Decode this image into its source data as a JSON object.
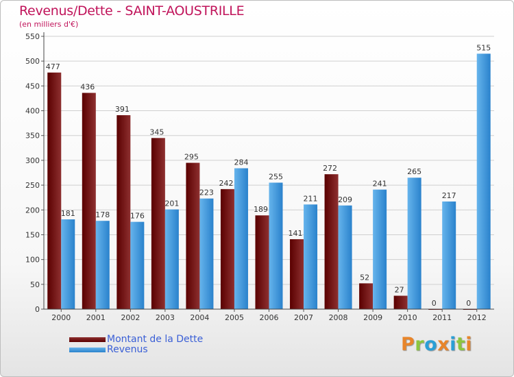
{
  "title": "Revenus/Dette - SAINT-AOUSTRILLE",
  "subtitle": "(en milliers d'€)",
  "colors": {
    "dette_dark": "#5a0000",
    "dette_light": "#8e3030",
    "revenus_dark": "#2a82cc",
    "revenus_light": "#66b4ec",
    "title": "#c0135a",
    "legend_text": "#3a5fd6"
  },
  "legend": [
    {
      "label": "Montant de la Dette"
    },
    {
      "label": "Revenus"
    }
  ],
  "logo": {
    "text": "Proxiti",
    "letters": [
      {
        "char": "P",
        "color": "#e8852a"
      },
      {
        "char": "r",
        "color": "#8cc63f"
      },
      {
        "char": "o",
        "color": "#2a9fd6"
      },
      {
        "char": "x",
        "color": "#e8852a"
      },
      {
        "char": "i",
        "color": "#2a9fd6"
      },
      {
        "char": "t",
        "color": "#8cc63f"
      },
      {
        "char": "i",
        "color": "#e8852a"
      }
    ]
  },
  "chart_data": {
    "type": "bar",
    "categories": [
      "2000",
      "2001",
      "2002",
      "2003",
      "2004",
      "2005",
      "2006",
      "2007",
      "2008",
      "2009",
      "2010",
      "2011",
      "2012"
    ],
    "series": [
      {
        "name": "Montant de la Dette",
        "values": [
          477,
          436,
          391,
          345,
          295,
          242,
          189,
          141,
          272,
          52,
          27,
          0,
          0
        ]
      },
      {
        "name": "Revenus",
        "values": [
          181,
          178,
          176,
          201,
          223,
          284,
          255,
          211,
          209,
          241,
          265,
          217,
          515
        ]
      }
    ],
    "yticks": [
      0,
      50,
      100,
      150,
      200,
      250,
      300,
      350,
      400,
      450,
      500,
      550
    ],
    "ylim": [
      0,
      550
    ],
    "grid": true,
    "legend_position": "bottom-left"
  }
}
